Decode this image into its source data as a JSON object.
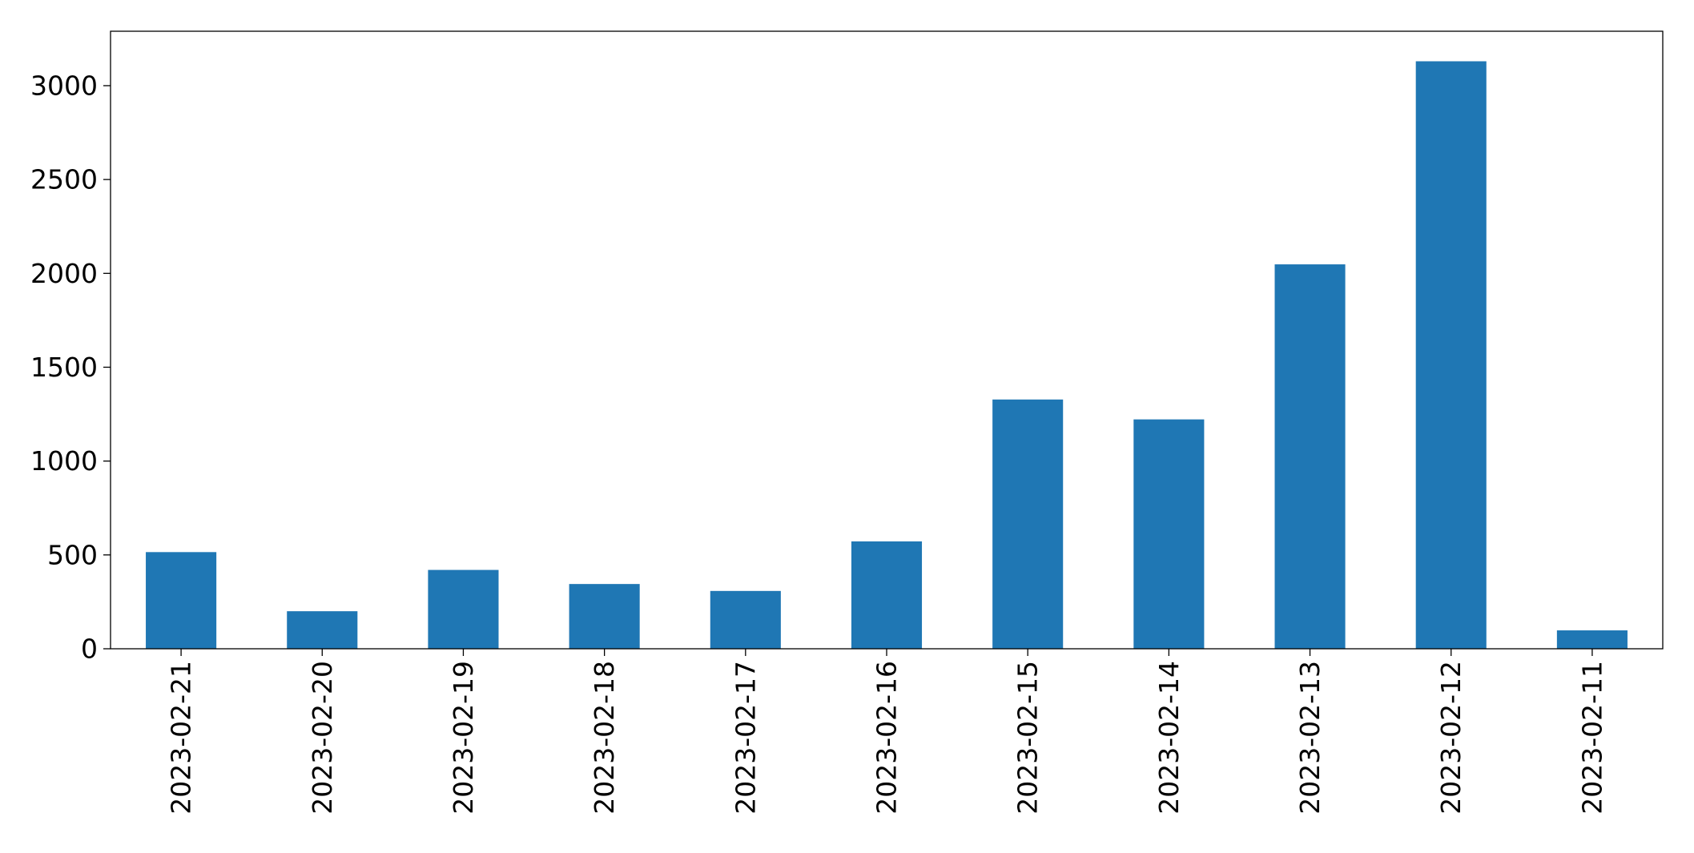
{
  "chart_data": {
    "type": "bar",
    "title": "",
    "xlabel": "",
    "ylabel": "",
    "categories": [
      "2023-02-21",
      "2023-02-20",
      "2023-02-19",
      "2023-02-18",
      "2023-02-17",
      "2023-02-16",
      "2023-02-15",
      "2023-02-14",
      "2023-02-13",
      "2023-02-12",
      "2023-02-11"
    ],
    "values": [
      515,
      200,
      420,
      345,
      308,
      572,
      1328,
      1222,
      2048,
      3130,
      98
    ],
    "ylim": [
      0,
      3290
    ],
    "yticks": [
      0,
      500,
      1000,
      1500,
      2000,
      2500,
      3000
    ],
    "grid": false,
    "legend": "none",
    "bar_color": "#1f77b4"
  }
}
